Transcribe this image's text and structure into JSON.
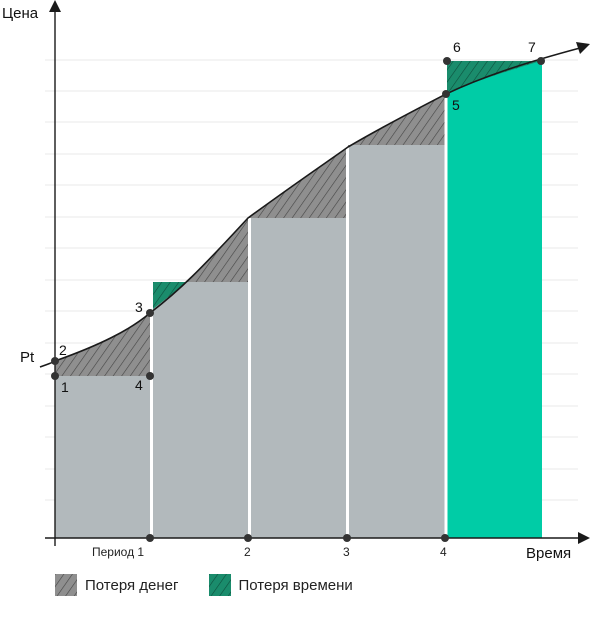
{
  "axes": {
    "y_label": "Цена",
    "x_label": "Время",
    "pt_label": "Pt"
  },
  "x_ticks": [
    "Период 1",
    "2",
    "3",
    "4"
  ],
  "points": [
    "1",
    "2",
    "3",
    "4",
    "5",
    "6",
    "7"
  ],
  "legend": {
    "money_loss": "Потеря денег",
    "time_loss": "Потеря времени"
  },
  "colors": {
    "gray_fill": "#b2b9bc",
    "green": "#00cca6",
    "hatch_gray": "#8f8f8f",
    "dark_green": "#1a8c6c",
    "curve": "#1a1a1a",
    "grid": "#e8e8e8"
  }
}
